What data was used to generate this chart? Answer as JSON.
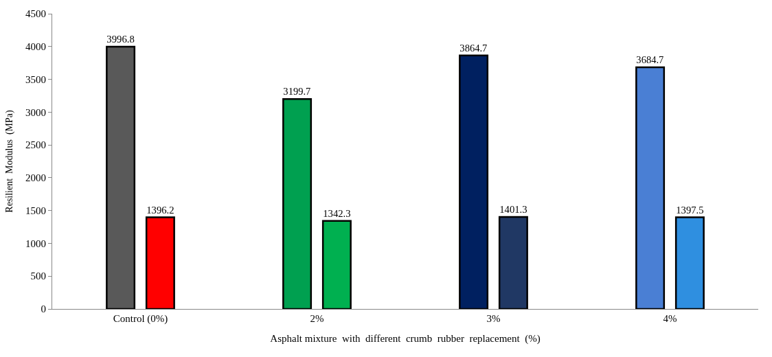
{
  "chart_data": {
    "type": "bar",
    "xlabel": "Asphalt mixture  with  different  crumb  rubber  replacement  (%)",
    "ylabel": "Resilient  Modulus  (MPa)",
    "categories": [
      "Control (0%)",
      "2%",
      "3%",
      "4%"
    ],
    "series": [
      {
        "colors": [
          "#595959",
          "#00a050",
          "#002060",
          "#4a7fd4"
        ],
        "values": [
          3996.8,
          3199.7,
          3864.7,
          3684.7
        ]
      },
      {
        "colors": [
          "#ff0000",
          "#00b050",
          "#203864",
          "#2f8fe0"
        ],
        "values": [
          1396.2,
          1342.3,
          1401.3,
          1397.5
        ]
      }
    ],
    "ylim": [
      0,
      4500
    ],
    "yticks": [
      0,
      500,
      1000,
      1500,
      2000,
      2500,
      3000,
      3500,
      4000,
      4500
    ],
    "data_labels": true,
    "legend": false
  }
}
